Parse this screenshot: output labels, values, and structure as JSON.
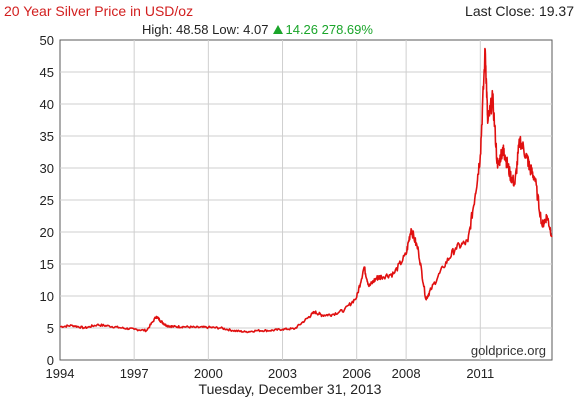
{
  "header": {
    "title": "20 Year Silver Price in USD/oz",
    "last_close_label": "Last Close: 19.37",
    "high_low": "High: 48.58 Low: 4.07",
    "change": "14.26 278.69%"
  },
  "watermark": "goldprice.org",
  "date_label": "Tuesday, December 31, 2013",
  "colors": {
    "series": "#e01010",
    "title": "#d21e1e",
    "change": "#1aa52a"
  },
  "chart_data": {
    "type": "line",
    "title": "20 Year Silver Price in USD/oz",
    "xlabel": "",
    "ylabel": "",
    "xlim": [
      1994.0,
      2013.9
    ],
    "ylim": [
      0,
      50
    ],
    "grid": true,
    "x_ticks": [
      {
        "value": 1994.0,
        "label": "1994"
      },
      {
        "value": 1997.0,
        "label": "1997"
      },
      {
        "value": 2000.0,
        "label": "2000"
      },
      {
        "value": 2003.0,
        "label": "2003"
      },
      {
        "value": 2006.0,
        "label": "2006"
      },
      {
        "value": 2008.0,
        "label": "2008"
      },
      {
        "value": 2011.0,
        "label": "2011"
      }
    ],
    "y_ticks": [
      0,
      5,
      10,
      15,
      20,
      25,
      30,
      35,
      40,
      45,
      50
    ],
    "series": [
      {
        "x": [
          1994.0,
          1994.5,
          1995.0,
          1995.5,
          1996.0,
          1996.5,
          1997.0,
          1997.5,
          1997.9,
          1998.1,
          1998.3,
          1998.6,
          1999.0,
          1999.5,
          2000.0,
          2000.5,
          2001.0,
          2001.5,
          2002.0,
          2002.5,
          2003.0,
          2003.5,
          2004.0,
          2004.3,
          2004.6,
          2005.0,
          2005.5,
          2006.0,
          2006.3,
          2006.5,
          2006.8,
          2007.0,
          2007.5,
          2008.0,
          2008.2,
          2008.5,
          2008.8,
          2009.0,
          2009.5,
          2010.0,
          2010.5,
          2010.8,
          2011.0,
          2011.2,
          2011.3,
          2011.5,
          2011.7,
          2011.9,
          2012.0,
          2012.2,
          2012.4,
          2012.6,
          2012.9,
          2013.0,
          2013.2,
          2013.5,
          2013.7,
          2013.9
        ],
        "y": [
          5.2,
          5.4,
          5.0,
          5.5,
          5.3,
          5.0,
          4.8,
          4.6,
          6.8,
          6.0,
          5.4,
          5.2,
          5.2,
          5.1,
          5.1,
          5.0,
          4.6,
          4.4,
          4.6,
          4.6,
          4.8,
          4.9,
          6.5,
          7.5,
          7.0,
          7.1,
          7.8,
          9.8,
          14.5,
          11.5,
          12.8,
          13.0,
          13.5,
          16.5,
          20.5,
          17.0,
          9.5,
          11.0,
          14.5,
          17.5,
          18.5,
          26.0,
          32.0,
          48.5,
          37.0,
          41.0,
          30.0,
          33.0,
          32.0,
          29.0,
          27.5,
          34.5,
          31.5,
          30.0,
          28.5,
          21.0,
          22.5,
          19.4
        ]
      }
    ]
  }
}
